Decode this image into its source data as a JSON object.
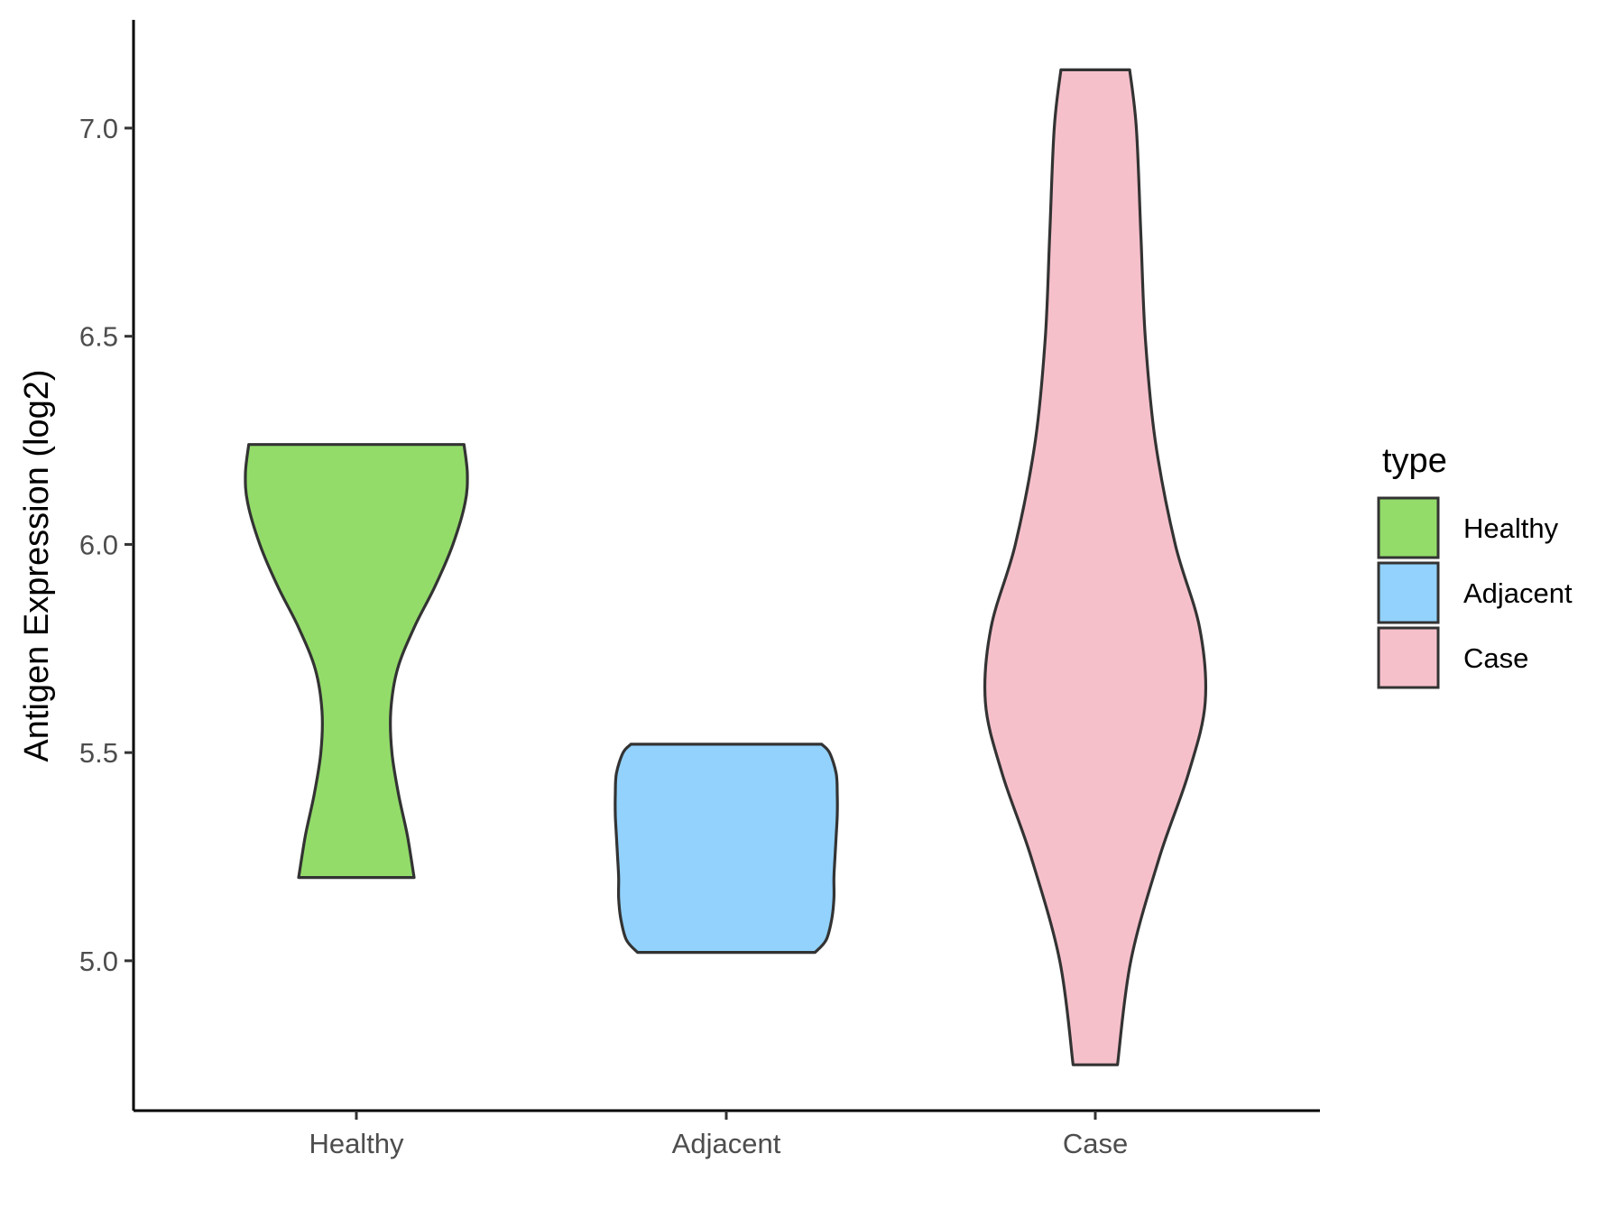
{
  "chart_data": {
    "type": "violin",
    "ylabel": "Antigen Expression (log2)",
    "xlabel": "",
    "categories": [
      "Healthy",
      "Adjacent",
      "Case"
    ],
    "ylim": [
      4.64,
      7.26
    ],
    "yticks": [
      "5.0",
      "5.5",
      "6.0",
      "6.5",
      "7.0"
    ],
    "legend": {
      "title": "type",
      "position": "right",
      "items": [
        {
          "label": "Healthy",
          "color": "#93dc6a"
        },
        {
          "label": "Adjacent",
          "color": "#92d2fd"
        },
        {
          "label": "Case",
          "color": "#f6c0cb"
        }
      ]
    },
    "outline_color": "#333333",
    "grid": false,
    "series": [
      {
        "category": "Healthy",
        "color": "#93dc6a",
        "min": 5.2,
        "max": 6.24,
        "profile": [
          [
            5.2,
            0.52
          ],
          [
            5.3,
            0.46
          ],
          [
            5.4,
            0.38
          ],
          [
            5.5,
            0.32
          ],
          [
            5.6,
            0.31
          ],
          [
            5.7,
            0.37
          ],
          [
            5.8,
            0.52
          ],
          [
            5.9,
            0.71
          ],
          [
            6.0,
            0.87
          ],
          [
            6.1,
            0.98
          ],
          [
            6.17,
            1.0
          ],
          [
            6.24,
            0.97
          ]
        ]
      },
      {
        "category": "Adjacent",
        "color": "#92d2fd",
        "min": 5.02,
        "max": 5.52,
        "profile": [
          [
            5.02,
            0.8
          ],
          [
            5.05,
            0.9
          ],
          [
            5.1,
            0.95
          ],
          [
            5.15,
            0.97
          ],
          [
            5.2,
            0.97
          ],
          [
            5.25,
            0.98
          ],
          [
            5.3,
            0.99
          ],
          [
            5.35,
            1.0
          ],
          [
            5.4,
            1.0
          ],
          [
            5.45,
            0.99
          ],
          [
            5.5,
            0.93
          ],
          [
            5.52,
            0.86
          ]
        ]
      },
      {
        "category": "Case",
        "color": "#f6c0cb",
        "min": 4.75,
        "max": 7.14,
        "profile": [
          [
            4.75,
            0.2
          ],
          [
            5.0,
            0.32
          ],
          [
            5.25,
            0.58
          ],
          [
            5.45,
            0.84
          ],
          [
            5.62,
            0.99
          ],
          [
            5.8,
            0.94
          ],
          [
            6.0,
            0.72
          ],
          [
            6.25,
            0.54
          ],
          [
            6.5,
            0.45
          ],
          [
            6.75,
            0.41
          ],
          [
            7.0,
            0.37
          ],
          [
            7.14,
            0.31
          ]
        ]
      }
    ]
  }
}
